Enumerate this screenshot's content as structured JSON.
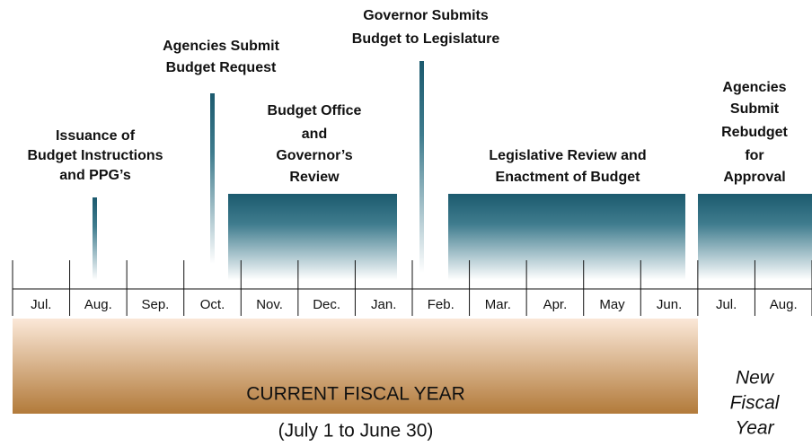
{
  "months": [
    "Jul.",
    "Aug.",
    "Sep.",
    "Oct.",
    "Nov.",
    "Dec.",
    "Jan.",
    "Feb.",
    "Mar.",
    "Apr.",
    "May",
    "Jun.",
    "Jul.",
    "Aug."
  ],
  "events": [
    {
      "lines": [
        "Issuance of",
        "Budget Instructions",
        "and PPG’s"
      ]
    },
    {
      "lines": [
        "Agencies Submit",
        "Budget Request"
      ]
    },
    {
      "lines": [
        "Budget Office",
        "and",
        "Governor’s",
        "Review"
      ]
    },
    {
      "lines": [
        "Governor Submits",
        "Budget to Legislature"
      ]
    },
    {
      "lines": [
        "Legislative Review and",
        "Enactment of Budget"
      ]
    },
    {
      "lines": [
        "Agencies",
        "Submit",
        "Rebudget",
        "for",
        "Approval"
      ]
    }
  ],
  "current_fiscal_year": {
    "title": "CURRENT FISCAL YEAR",
    "range": "(July 1 to June 30)"
  },
  "new_fiscal_year": {
    "lines": [
      "New",
      "Fiscal",
      "Year"
    ]
  }
}
